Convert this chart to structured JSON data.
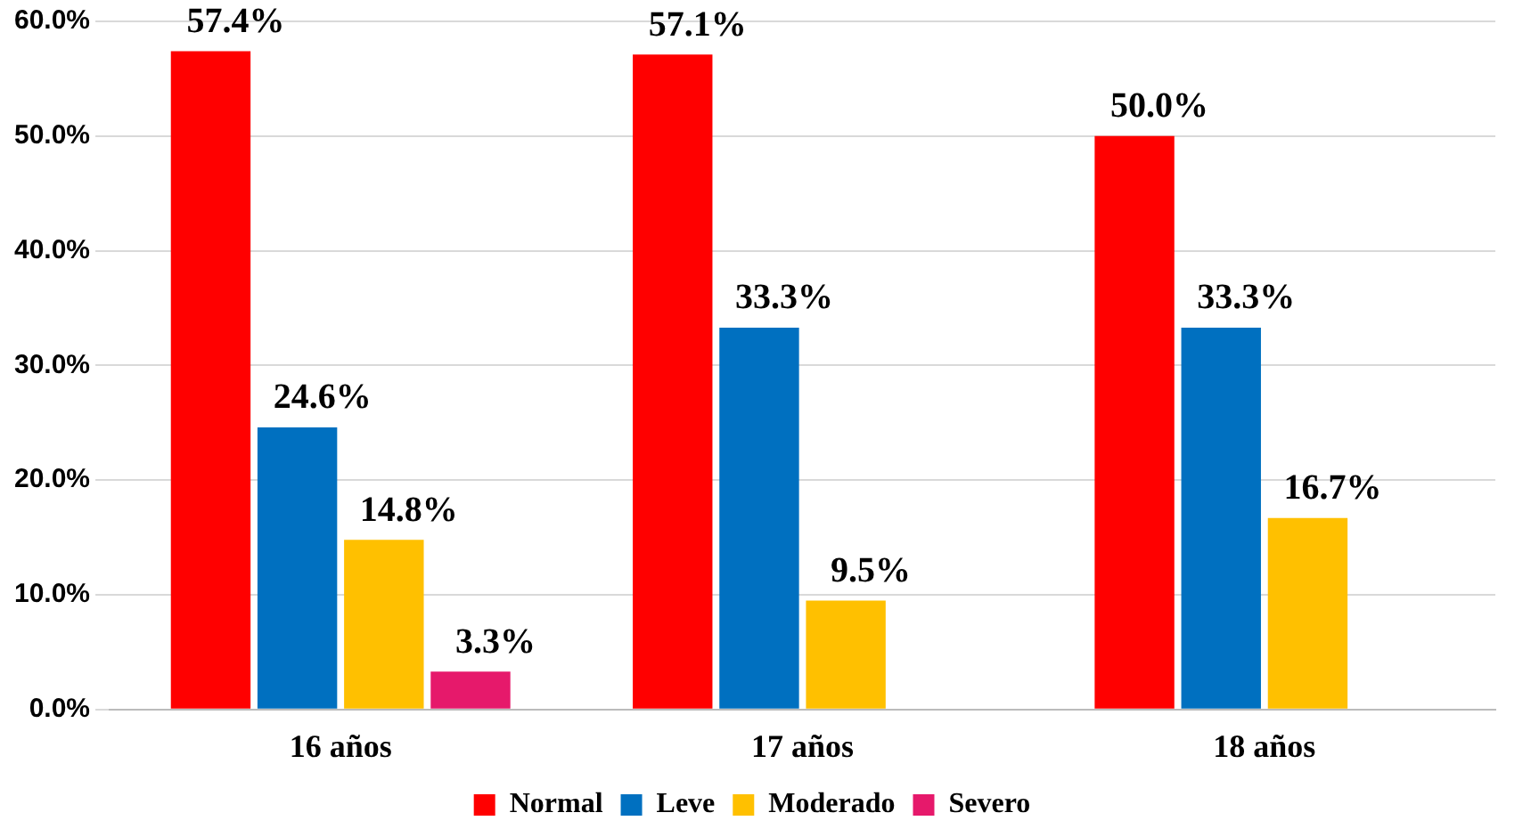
{
  "chart_data": {
    "type": "bar",
    "categories": [
      "16 años",
      "17 años",
      "18 años"
    ],
    "series": [
      {
        "name": "Normal",
        "color": "#ff0000",
        "values": [
          57.4,
          57.1,
          50.0
        ],
        "value_labels": [
          "57.4%",
          "57.1%",
          "50.0%"
        ]
      },
      {
        "name": "Leve",
        "color": "#0070c0",
        "values": [
          24.6,
          33.3,
          33.3
        ],
        "value_labels": [
          "24.6%",
          "33.3%",
          "33.3%"
        ]
      },
      {
        "name": "Moderado",
        "color": "#ffc000",
        "values": [
          14.8,
          9.5,
          16.7
        ],
        "value_labels": [
          "14.8%",
          "9.5%",
          "16.7%"
        ]
      },
      {
        "name": "Severo",
        "color": "#e6196b",
        "values": [
          3.3,
          null,
          null
        ],
        "value_labels": [
          "3.3%",
          null,
          null
        ]
      }
    ],
    "ylim": [
      0,
      60
    ],
    "yticks": [
      {
        "value": 0,
        "label": "0.0%"
      },
      {
        "value": 10,
        "label": "10.0%"
      },
      {
        "value": 20,
        "label": "20.0%"
      },
      {
        "value": 30,
        "label": "30.0%"
      },
      {
        "value": 40,
        "label": "40.0%"
      },
      {
        "value": 50,
        "label": "50.0%"
      },
      {
        "value": 60,
        "label": "60.0%"
      }
    ],
    "grid": "y",
    "legend": "bottom"
  }
}
